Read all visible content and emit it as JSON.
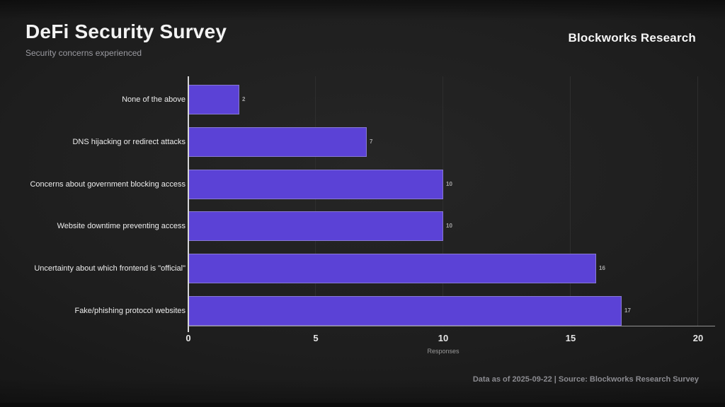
{
  "header": {
    "brand": "Blockworks Research"
  },
  "chart_data": {
    "type": "bar",
    "orientation": "horizontal",
    "title": "DeFi Security Survey",
    "subtitle": "Security concerns experienced",
    "categories": [
      "None of the above",
      "DNS hijacking or redirect attacks",
      "Concerns about government blocking access",
      "Website downtime preventing access",
      "Uncertainty about which frontend is \"official\"",
      "Fake/phishing protocol websites"
    ],
    "values": [
      2,
      7,
      10,
      10,
      16,
      17
    ],
    "xlabel": "Responses",
    "xlim": [
      0,
      20
    ],
    "xticks": [
      0,
      5,
      10,
      15,
      20
    ],
    "grid": true,
    "legend": "none",
    "bar_color": "#5b42d6",
    "gridline_color": "#2e2e2e",
    "axis_color": "#d6d6d6",
    "background_color": "#1e1e1e"
  },
  "footer": {
    "source_note": "Data as of 2025-09-22 | Source: Blockworks Research Survey"
  }
}
